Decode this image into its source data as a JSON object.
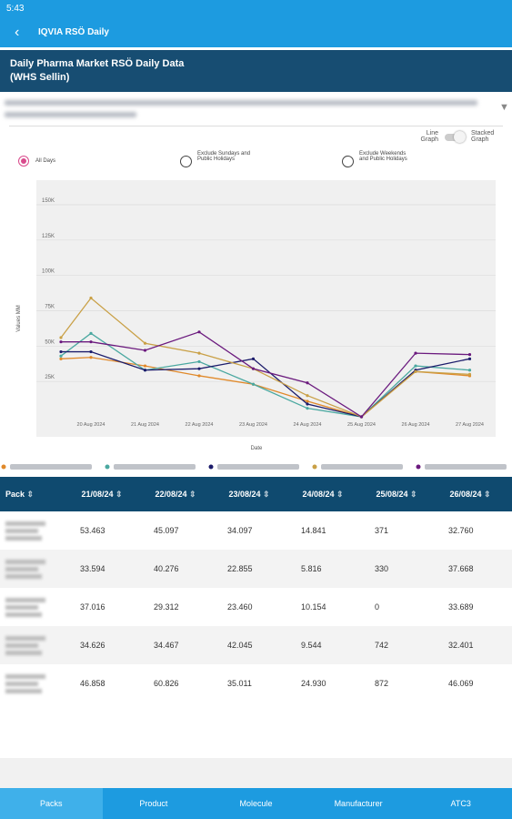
{
  "status_bar": {
    "time": "5:43"
  },
  "app_bar": {
    "title": "IQVIA RSÖ Daily"
  },
  "header": {
    "title_line1": "Daily Pharma Market RSÖ Daily Data",
    "title_line2": "(WHS Sellin)"
  },
  "toggle": {
    "left": "Line Graph",
    "right": "Stacked Graph"
  },
  "filters": [
    "All Days",
    "Exclude Sundays and Public Holidays",
    "Exclude Weekends and Public Holidays"
  ],
  "chart_data": {
    "type": "line",
    "y_label": "Values MM",
    "x_label": "Date",
    "categories": [
      null,
      "20 Aug 2024",
      "21 Aug 2024",
      "22 Aug 2024",
      "23 Aug 2024",
      "24 Aug 2024",
      "25 Aug 2024",
      "26 Aug 2024",
      "27 Aug 2024"
    ],
    "ylim": [
      0,
      150000
    ],
    "yticks": [
      {
        "value": 25000,
        "label": "25K"
      },
      {
        "value": 50000,
        "label": "50K"
      },
      {
        "value": 75000,
        "label": "75K"
      },
      {
        "value": 100000,
        "label": "100K"
      },
      {
        "value": 125000,
        "label": "125K"
      },
      {
        "value": 150000,
        "label": "150K"
      }
    ],
    "grid": true,
    "series": [
      {
        "color": "#e0892a",
        "values": [
          41000,
          42000,
          36000,
          29000,
          23000,
          11000,
          0,
          32000,
          29000
        ]
      },
      {
        "color": "#4aa8a0",
        "values": [
          43000,
          59000,
          33000,
          39000,
          23000,
          6000,
          0,
          36000,
          33000
        ]
      },
      {
        "color": "#1c1c6b",
        "values": [
          46000,
          46000,
          33000,
          34000,
          41000,
          9000,
          0,
          33000,
          41000
        ]
      },
      {
        "color": "#c9a046",
        "values": [
          56000,
          84000,
          52000,
          45000,
          34000,
          15000,
          0,
          32000,
          30000
        ]
      },
      {
        "color": "#6b1a7e",
        "values": [
          53000,
          53000,
          47000,
          60000,
          34000,
          24000,
          0,
          45000,
          44000
        ]
      }
    ]
  },
  "table": {
    "columns": [
      "Pack",
      "21/08/24",
      "22/08/24",
      "23/08/24",
      "24/08/24",
      "25/08/24",
      "26/08/24"
    ],
    "rows": [
      [
        "53.463",
        "45.097",
        "34.097",
        "14.841",
        "371",
        "32.760"
      ],
      [
        "33.594",
        "40.276",
        "22.855",
        "5.816",
        "330",
        "37.668"
      ],
      [
        "37.016",
        "29.312",
        "23.460",
        "10.154",
        "0",
        "33.689"
      ],
      [
        "34.626",
        "34.467",
        "42.045",
        "9.544",
        "742",
        "32.401"
      ],
      [
        "46.858",
        "60.826",
        "35.011",
        "24.930",
        "872",
        "46.069"
      ]
    ]
  },
  "bottom_nav": [
    "Packs",
    "Product",
    "Molecule",
    "Manufacturer",
    "ATC3"
  ]
}
